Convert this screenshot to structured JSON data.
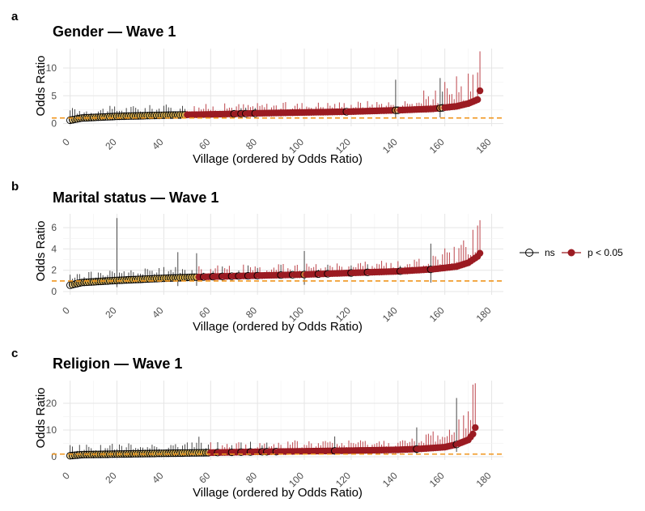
{
  "colors": {
    "ns": "#000000",
    "sig": "#9b1b22",
    "sig_bar": "#c2555b",
    "ns_fill": "#f2c14e",
    "ref_line": "#f0961e",
    "grid": "#e5e5e5"
  },
  "legend": {
    "ns_label": "ns",
    "sig_label": "p < 0.05"
  },
  "chart_data": [
    {
      "type": "scatter",
      "panel": "a",
      "title": "Gender — Wave 1",
      "xlabel": "Village (ordered by Odds Ratio)",
      "ylabel": "Odds Ratio",
      "xlim": [
        -3,
        185
      ],
      "ylim": [
        -0.5,
        13.5
      ],
      "xticks": [
        0,
        20,
        40,
        60,
        80,
        100,
        120,
        140,
        160,
        180
      ],
      "yticks": [
        0,
        5,
        10
      ],
      "reference_line": 1,
      "n_villages": 176,
      "or_anchors": [
        [
          0,
          0.6
        ],
        [
          5,
          1.0
        ],
        [
          20,
          1.3
        ],
        [
          40,
          1.5
        ],
        [
          60,
          1.65
        ],
        [
          80,
          1.85
        ],
        [
          100,
          2.0
        ],
        [
          120,
          2.15
        ],
        [
          140,
          2.4
        ],
        [
          155,
          2.65
        ],
        [
          165,
          3.1
        ],
        [
          170,
          3.6
        ],
        [
          174,
          4.3
        ],
        [
          175,
          5.9
        ]
      ],
      "significant_from": 50,
      "ns_marked": [
        0,
        2,
        4,
        6,
        9,
        12,
        15,
        18,
        21,
        24,
        28,
        31,
        35,
        38,
        42,
        45,
        70,
        73,
        75,
        79,
        118,
        140,
        159
      ],
      "tall_ns_upper": [
        [
          139,
          7.9
        ],
        [
          158,
          8.2
        ],
        [
          1,
          2.8
        ]
      ],
      "sig_upper_max": [
        [
          160,
          7.5
        ],
        [
          165,
          8.5
        ],
        [
          170,
          9.0
        ],
        [
          172,
          8.8
        ],
        [
          174,
          9.2
        ],
        [
          175,
          13.0
        ]
      ]
    },
    {
      "type": "scatter",
      "panel": "b",
      "title": "Marital status — Wave 1",
      "xlabel": "Village (ordered by Odds Ratio)",
      "ylabel": "Odds Ratio",
      "xlim": [
        -3,
        185
      ],
      "ylim": [
        -0.3,
        7.3
      ],
      "xticks": [
        0,
        20,
        40,
        60,
        80,
        100,
        120,
        140,
        160,
        180
      ],
      "yticks": [
        0,
        2,
        4,
        6
      ],
      "reference_line": 1,
      "n_villages": 176,
      "or_anchors": [
        [
          0,
          0.6
        ],
        [
          5,
          0.85
        ],
        [
          20,
          1.05
        ],
        [
          40,
          1.25
        ],
        [
          60,
          1.4
        ],
        [
          80,
          1.5
        ],
        [
          100,
          1.6
        ],
        [
          120,
          1.75
        ],
        [
          140,
          1.9
        ],
        [
          155,
          2.1
        ],
        [
          165,
          2.35
        ],
        [
          170,
          2.7
        ],
        [
          174,
          3.3
        ],
        [
          175,
          3.6
        ]
      ],
      "significant_from": 55,
      "ns_marked": [
        0,
        2,
        4,
        6,
        9,
        12,
        15,
        18,
        21,
        24,
        28,
        31,
        35,
        38,
        42,
        45,
        50,
        57,
        61,
        65,
        69,
        72,
        76,
        80,
        90,
        95,
        106,
        110,
        120,
        127,
        141,
        154
      ],
      "tall_ns_upper": [
        [
          20,
          6.9
        ],
        [
          46,
          3.7
        ],
        [
          54,
          3.6
        ],
        [
          100,
          3.8
        ],
        [
          154,
          4.5
        ]
      ],
      "sig_upper_max": [
        [
          164,
          4.2
        ],
        [
          168,
          4.8
        ],
        [
          172,
          5.8
        ],
        [
          174,
          6.2
        ],
        [
          175,
          6.7
        ]
      ]
    },
    {
      "type": "scatter",
      "panel": "c",
      "title": "Religion — Wave 1",
      "xlabel": "Village (ordered by Odds Ratio)",
      "ylabel": "Odds Ratio",
      "xlim": [
        -3,
        185
      ],
      "ylim": [
        -1.2,
        28.5
      ],
      "xticks": [
        0,
        20,
        40,
        60,
        80,
        100,
        120,
        140,
        160,
        180
      ],
      "yticks": [
        0,
        10,
        20
      ],
      "reference_line": 1,
      "n_villages": 174,
      "or_anchors": [
        [
          0,
          0.4
        ],
        [
          5,
          0.8
        ],
        [
          20,
          1.0
        ],
        [
          40,
          1.3
        ],
        [
          60,
          1.55
        ],
        [
          80,
          1.85
        ],
        [
          100,
          2.05
        ],
        [
          120,
          2.3
        ],
        [
          140,
          2.6
        ],
        [
          150,
          3.0
        ],
        [
          160,
          3.6
        ],
        [
          165,
          4.6
        ],
        [
          170,
          6.3
        ],
        [
          172,
          8.5
        ],
        [
          173,
          10.9
        ]
      ],
      "significant_from": 60,
      "ns_marked": [
        1,
        3,
        5,
        7,
        10,
        13,
        16,
        19,
        23,
        26,
        30,
        34,
        38,
        42,
        46,
        52,
        58,
        63,
        69,
        73,
        77,
        82,
        84,
        88,
        113,
        148,
        165
      ],
      "tall_ns_upper": [
        [
          55,
          7.5
        ],
        [
          113,
          7.6
        ],
        [
          148,
          11.0
        ],
        [
          165,
          22.0
        ]
      ],
      "sig_upper_max": [
        [
          166,
          14.0
        ],
        [
          168,
          15.5
        ],
        [
          170,
          17.0
        ],
        [
          172,
          27.0
        ],
        [
          173,
          27.5
        ]
      ]
    }
  ]
}
